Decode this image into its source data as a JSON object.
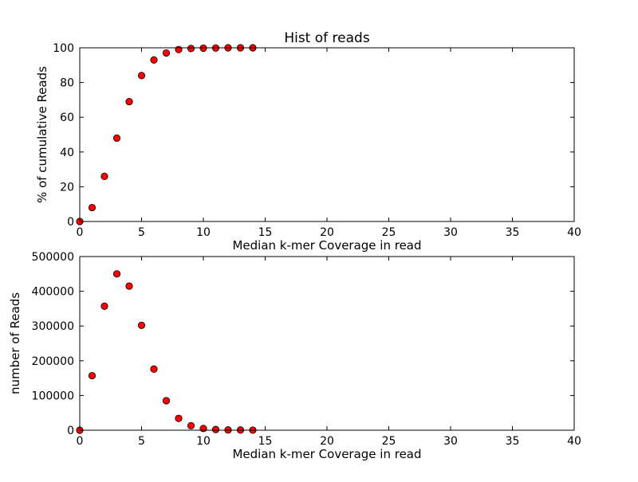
{
  "chart_data": [
    {
      "type": "scatter",
      "title": "Hist of reads",
      "xlabel": "Median k-mer Coverage in read",
      "ylabel": "% of cumulative Reads",
      "xlim": [
        0,
        40
      ],
      "ylim": [
        0,
        100
      ],
      "xticks": [
        "0",
        "5",
        "10",
        "15",
        "20",
        "25",
        "30",
        "35",
        "40"
      ],
      "yticks": [
        "0",
        "20",
        "40",
        "60",
        "80",
        "100"
      ],
      "grid": false,
      "marker_color": "#ff0000",
      "marker_edge_color": "#000000",
      "series": [
        {
          "x": [
            0,
            1,
            2,
            3,
            4,
            5,
            6,
            7,
            8,
            9,
            10,
            11,
            12,
            13,
            14
          ],
          "y": [
            0,
            8,
            26,
            48,
            69,
            84,
            93,
            97,
            99,
            99.6,
            99.8,
            99.9,
            100,
            100,
            100
          ]
        }
      ]
    },
    {
      "type": "scatter",
      "title": "",
      "xlabel": "Median k-mer Coverage in read",
      "ylabel": "number of Reads",
      "xlim": [
        0,
        40
      ],
      "ylim": [
        0,
        500000
      ],
      "xticks": [
        "0",
        "5",
        "10",
        "15",
        "20",
        "25",
        "30",
        "35",
        "40"
      ],
      "yticks": [
        "0",
        "100000",
        "200000",
        "300000",
        "400000",
        "500000"
      ],
      "grid": false,
      "marker_color": "#ff0000",
      "marker_edge_color": "#000000",
      "series": [
        {
          "x": [
            0,
            1,
            2,
            3,
            4,
            5,
            6,
            7,
            8,
            9,
            10,
            11,
            12,
            13,
            14
          ],
          "y": [
            0,
            157000,
            357000,
            450000,
            415000,
            302000,
            176000,
            85000,
            34000,
            13000,
            5000,
            2000,
            1000,
            500,
            200
          ]
        }
      ]
    }
  ]
}
